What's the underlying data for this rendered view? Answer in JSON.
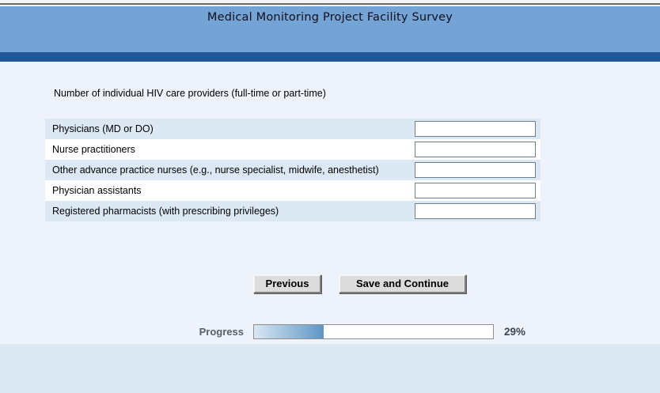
{
  "header": {
    "title": "Medical Monitoring Project Facility Survey"
  },
  "question": {
    "text": "Number of individual HIV care providers (full-time or part-time)"
  },
  "table": {
    "rows": [
      {
        "label": "Physicians (MD or DO)",
        "value": ""
      },
      {
        "label": "Nurse practitioners",
        "value": ""
      },
      {
        "label": "Other advance practice nurses (e.g., nurse specialist, midwife, anesthetist)",
        "value": ""
      },
      {
        "label": "Physician assistants",
        "value": ""
      },
      {
        "label": "Registered pharmacists (with prescribing privileges)",
        "value": ""
      }
    ]
  },
  "buttons": {
    "previous": "Previous",
    "save_continue": "Save and Continue"
  },
  "progress": {
    "label": "Progress",
    "percent": 29,
    "percent_text": "29%"
  },
  "colors": {
    "header_blue": "#74a3d6",
    "stripe_blue": "#1f5799",
    "row_alt_blue": "#dce9f5",
    "page_bg": "#eef2fa",
    "footer_bg": "#dbe7f3",
    "progress_fill_start": "#d9e7f3",
    "progress_fill_end": "#5e96c5"
  }
}
